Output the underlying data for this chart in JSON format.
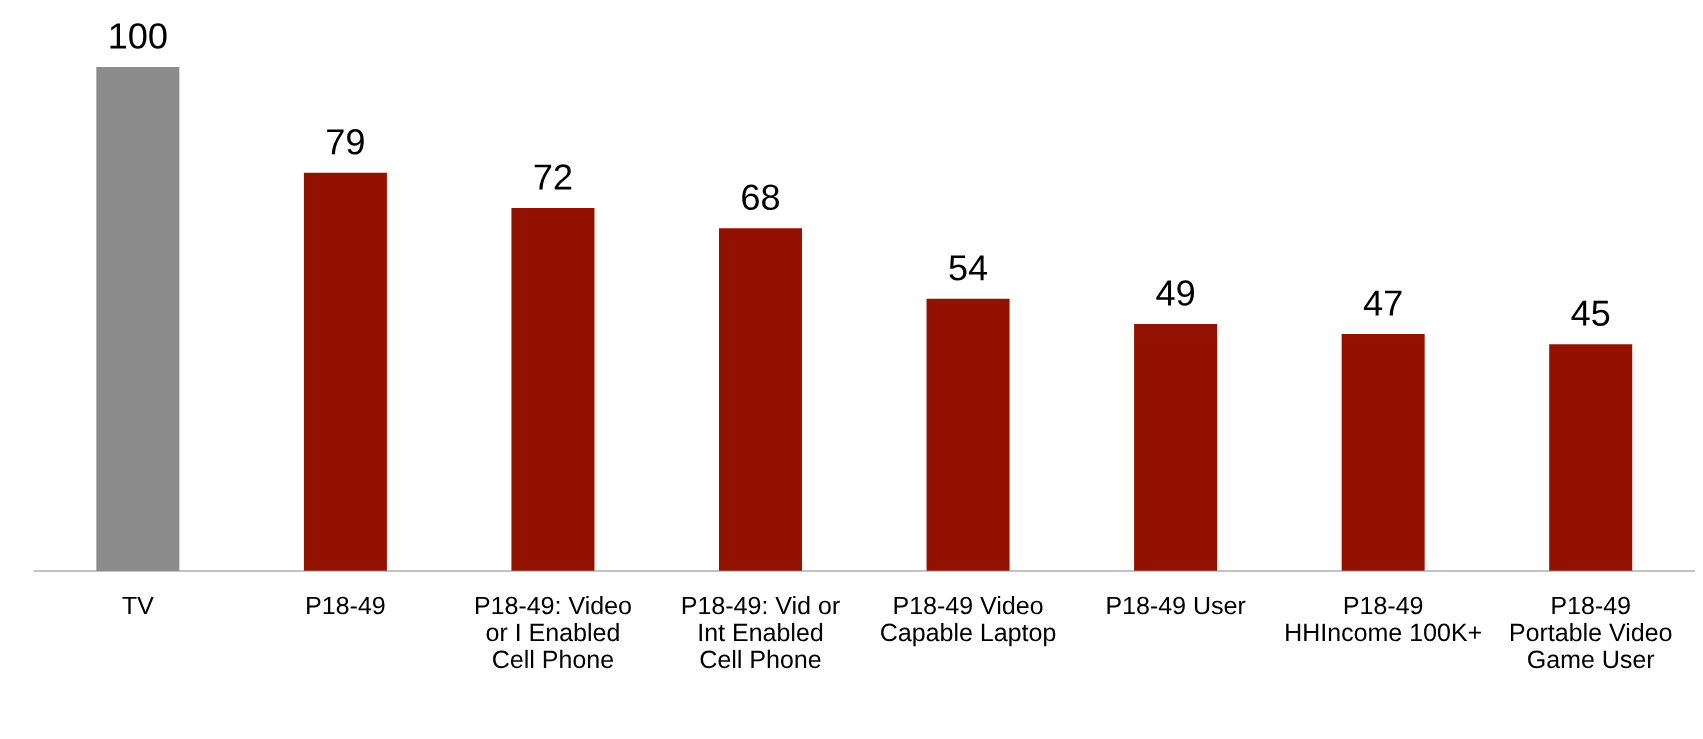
{
  "chart_data": {
    "type": "bar",
    "categories": [
      "TV",
      "P18-49",
      "P18-49: Video or I Enabled Cell Phone",
      "P18-49: Vid or Int Enabled Cell Phone",
      "P18-49 Video Capable Laptop",
      "P18-49 User",
      "P18-49 HHIncome 100K+",
      "P18-49 Portable Video Game User"
    ],
    "values": [
      100,
      79,
      72,
      68,
      54,
      49,
      47,
      45
    ],
    "colors": [
      "#8c8c8c",
      "#931100",
      "#931100",
      "#931100",
      "#931100",
      "#931100",
      "#931100",
      "#931100"
    ],
    "data_labels": true,
    "grid": false,
    "legend": false
  }
}
